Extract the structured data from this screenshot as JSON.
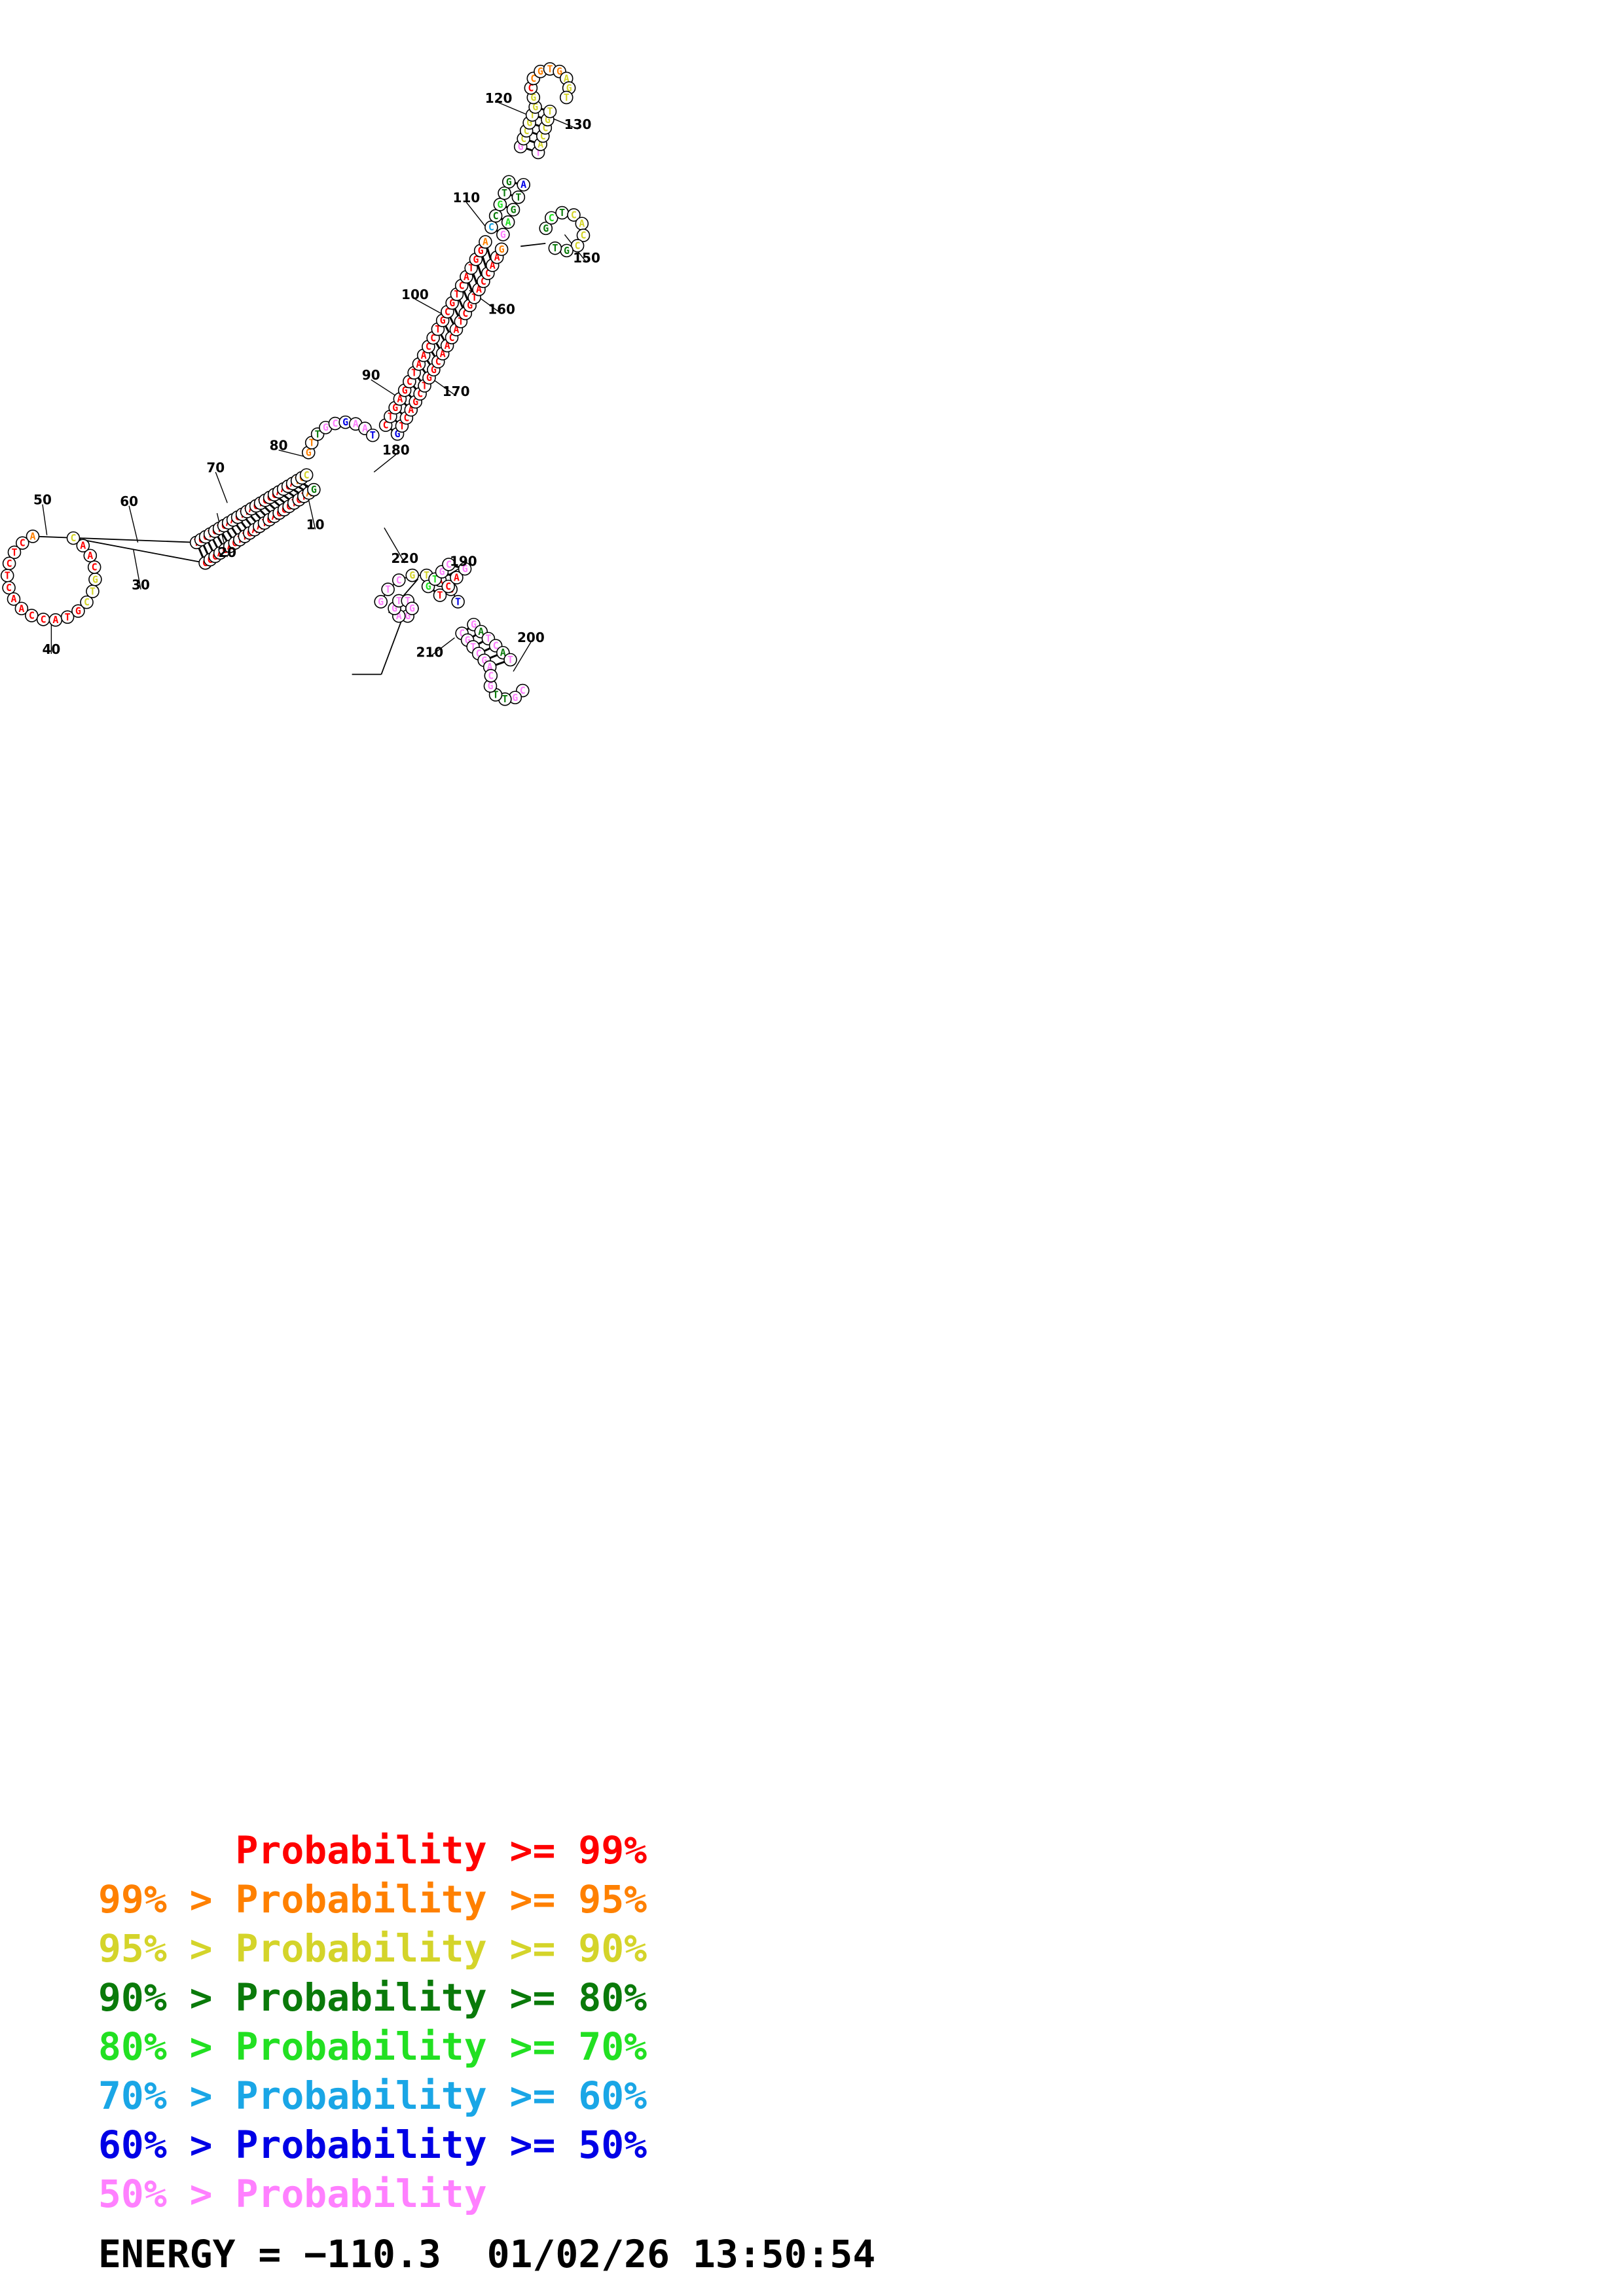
{
  "legend": [
    {
      "prefix": "      ",
      "text": "Probability >= 99%",
      "color": "#ff0000"
    },
    {
      "prefix": "99% > ",
      "text": "Probability >= 95%",
      "color": "#ff8000"
    },
    {
      "prefix": "95% > ",
      "text": "Probability >= 90%",
      "color": "#d4d42a"
    },
    {
      "prefix": "90% > ",
      "text": "Probability >= 80%",
      "color": "#0a7a0a"
    },
    {
      "prefix": "80% > ",
      "text": "Probability >= 70%",
      "color": "#22e022"
    },
    {
      "prefix": "70% > ",
      "text": "Probability >= 60%",
      "color": "#1aa6e6"
    },
    {
      "prefix": "60% > ",
      "text": "Probability >= 50%",
      "color": "#0000e6"
    },
    {
      "prefix": "50% > ",
      "text": "Probability",
      "color": "#ff80ff"
    }
  ],
  "energy_label": "ENERGY =",
  "energy_value": "−110.3",
  "timestamp": "01/02/26 13:50:54",
  "position_labels": [
    "10",
    "20",
    "30",
    "40",
    "50",
    "60",
    "70",
    "80",
    "90",
    "100",
    "110",
    "120",
    "130",
    "150",
    "160",
    "170",
    "180",
    "190",
    "200",
    "210",
    "220"
  ],
  "structure": {
    "lower_stem_top": "TCCTCTCAACTTAGTCGCAACATCCTAA",
    "lower_stem_bottom": "GGGAGAGTTGAATCAGCGTGTAGGA",
    "left_loop": "ACTCTCAACCATGCTGCA",
    "main_stem_left": "CTGAGCTAACCTGCGTCATGGA",
    "main_stem_right": "GTCAGCTGGCAACATCGTACCAAG",
    "upper_loop_bases": "GCCGTGAGTCGT"
  }
}
